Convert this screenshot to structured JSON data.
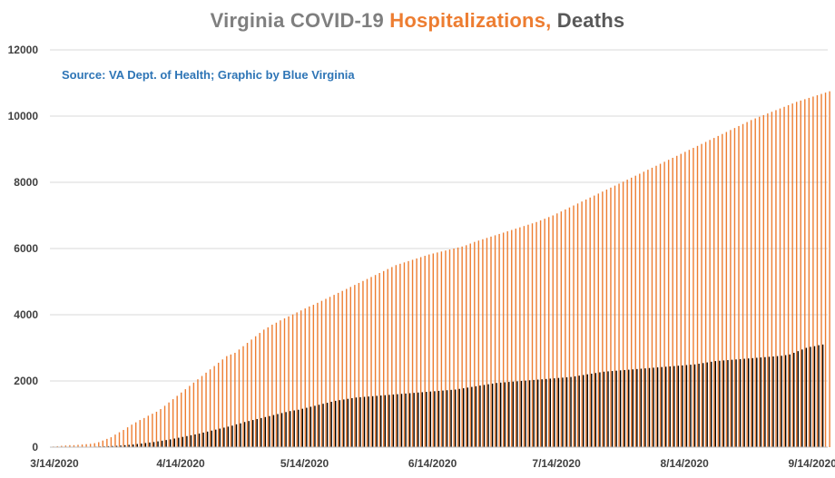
{
  "chart_data": {
    "type": "bar",
    "title_parts": {
      "main": "Virginia COVID-19 ",
      "hospitalizations": "Hospitalizations,",
      "deaths": " Deaths"
    },
    "subtitle": "Source: VA Dept. of Health; Graphic by Blue Virginia",
    "ylim": [
      0,
      12000
    ],
    "y_ticks": [
      "0",
      "2000",
      "4000",
      "6000",
      "8000",
      "10000",
      "12000"
    ],
    "x_tick_labels": [
      "3/14/2020",
      "4/14/2020",
      "5/14/2020",
      "6/14/2020",
      "7/14/2020",
      "8/14/2020",
      "9/14/2020"
    ],
    "x_tick_index": [
      0,
      31,
      61,
      92,
      122,
      153,
      184
    ],
    "grid": true,
    "legend": "none",
    "series": [
      {
        "key": "hospitalizations",
        "color": "#ed7d31",
        "values": [
          20,
          30,
          40,
          50,
          60,
          60,
          70,
          80,
          90,
          100,
          120,
          150,
          200,
          250,
          300,
          380,
          450,
          520,
          600,
          680,
          750,
          820,
          880,
          950,
          1010,
          1070,
          1150,
          1250,
          1350,
          1450,
          1550,
          1650,
          1750,
          1850,
          1950,
          2050,
          2150,
          2250,
          2350,
          2450,
          2550,
          2650,
          2750,
          2800,
          2850,
          2950,
          3050,
          3150,
          3250,
          3350,
          3450,
          3550,
          3620,
          3700,
          3760,
          3830,
          3890,
          3950,
          4010,
          4070,
          4130,
          4190,
          4250,
          4300,
          4360,
          4420,
          4480,
          4540,
          4600,
          4660,
          4720,
          4780,
          4840,
          4900,
          4960,
          5020,
          5080,
          5140,
          5200,
          5260,
          5320,
          5380,
          5440,
          5500,
          5540,
          5580,
          5620,
          5660,
          5700,
          5740,
          5780,
          5820,
          5850,
          5880,
          5910,
          5940,
          5970,
          6000,
          6030,
          6060,
          6100,
          6150,
          6200,
          6240,
          6280,
          6320,
          6360,
          6400,
          6440,
          6480,
          6520,
          6560,
          6600,
          6640,
          6680,
          6720,
          6760,
          6800,
          6850,
          6900,
          6950,
          7000,
          7060,
          7120,
          7180,
          7240,
          7300,
          7360,
          7420,
          7480,
          7540,
          7600,
          7660,
          7720,
          7780,
          7840,
          7900,
          7960,
          8020,
          8080,
          8140,
          8200,
          8260,
          8320,
          8380,
          8440,
          8500,
          8560,
          8620,
          8680,
          8740,
          8800,
          8860,
          8920,
          8980,
          9040,
          9100,
          9160,
          9220,
          9280,
          9340,
          9400,
          9460,
          9520,
          9580,
          9640,
          9700,
          9760,
          9820,
          9880,
          9930,
          9980,
          10030,
          10080,
          10130,
          10180,
          10230,
          10280,
          10330,
          10380,
          10430,
          10470,
          10510,
          10550,
          10590,
          10630,
          10670,
          10710,
          10750
        ]
      },
      {
        "key": "deaths",
        "color": "#000000",
        "values": [
          2,
          2,
          3,
          3,
          4,
          5,
          6,
          7,
          9,
          13,
          17,
          22,
          25,
          30,
          35,
          40,
          50,
          60,
          70,
          80,
          95,
          110,
          125,
          140,
          155,
          175,
          195,
          215,
          235,
          260,
          285,
          310,
          335,
          360,
          385,
          410,
          440,
          470,
          500,
          530,
          560,
          590,
          620,
          650,
          690,
          720,
          760,
          790,
          820,
          850,
          880,
          910,
          940,
          970,
          1000,
          1030,
          1060,
          1090,
          1110,
          1130,
          1160,
          1190,
          1220,
          1250,
          1280,
          1310,
          1340,
          1370,
          1400,
          1420,
          1440,
          1460,
          1480,
          1500,
          1510,
          1520,
          1530,
          1540,
          1550,
          1560,
          1570,
          1580,
          1590,
          1600,
          1610,
          1620,
          1630,
          1640,
          1650,
          1660,
          1670,
          1680,
          1690,
          1700,
          1710,
          1720,
          1730,
          1740,
          1760,
          1780,
          1800,
          1820,
          1840,
          1860,
          1880,
          1900,
          1920,
          1940,
          1950,
          1960,
          1970,
          1980,
          1990,
          2000,
          2010,
          2020,
          2030,
          2040,
          2050,
          2060,
          2070,
          2080,
          2090,
          2100,
          2110,
          2120,
          2140,
          2160,
          2180,
          2200,
          2220,
          2240,
          2260,
          2280,
          2290,
          2300,
          2310,
          2320,
          2330,
          2340,
          2350,
          2360,
          2370,
          2380,
          2390,
          2400,
          2410,
          2420,
          2430,
          2440,
          2450,
          2460,
          2470,
          2480,
          2490,
          2500,
          2520,
          2540,
          2560,
          2580,
          2600,
          2610,
          2620,
          2630,
          2640,
          2650,
          2660,
          2670,
          2680,
          2690,
          2700,
          2710,
          2720,
          2730,
          2740,
          2750,
          2760,
          2780,
          2800,
          2850,
          2900,
          2950,
          3000,
          3030,
          3050,
          3080,
          3100
        ]
      }
    ]
  }
}
